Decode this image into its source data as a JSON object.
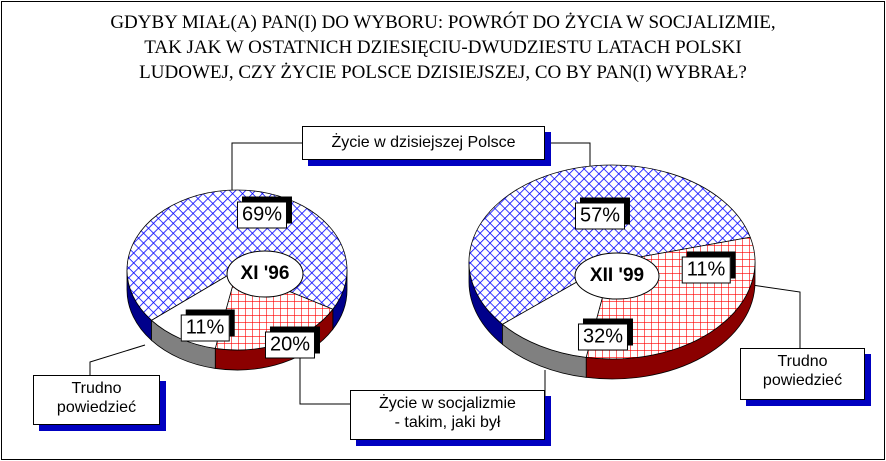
{
  "title": "GDYBY MIAŁ(A) PAN(I) DO WYBORU: POWRÓT DO ŻYCIA W SOCJALIZMIE,\nTAK JAK W OSTATNICH DZIESIĘCIU-DWUDZIESTU LATACH POLSKI\nLUDOWEJ, CZY ŻYCIE  POLSCE DZISIEJSZEJ, CO BY PAN(I) WYBRAŁ?",
  "categories": [
    "Życie w dzisiejszej Polsce",
    "Życie w socjalizmie\n- takim, jaki był",
    "Trudno\npowiedzieć"
  ],
  "colors": [
    "#0000ff",
    "#ff0000",
    "#ffffff"
  ],
  "side_colors": [
    "#00008b",
    "#8b0000",
    "#808080"
  ],
  "chart_data": [
    {
      "type": "pie",
      "title": "XI '96",
      "values": [
        69,
        20,
        11
      ],
      "value_labels": [
        "69%",
        "20%",
        "11%"
      ]
    },
    {
      "type": "pie",
      "title": "XII '99",
      "values": [
        57,
        32,
        11
      ],
      "value_labels": [
        "57%",
        "32%",
        "11%"
      ]
    }
  ]
}
